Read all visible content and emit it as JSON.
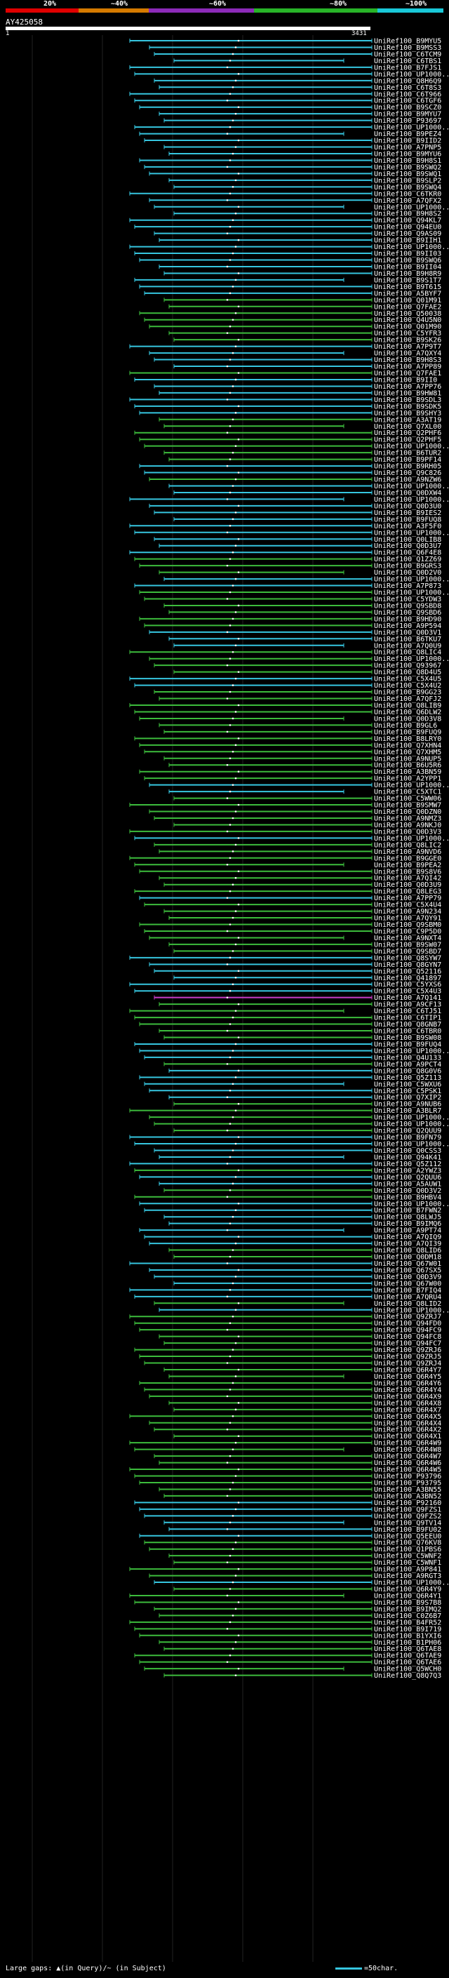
{
  "scale": {
    "labels": [
      "20%",
      "~40%",
      "~60%",
      "~80%",
      "~100%"
    ],
    "bands": [
      "#e00000",
      "#d57a00",
      "#8c2ab8",
      "#28b428",
      "#19c8d8"
    ]
  },
  "query": {
    "title": "AY425058",
    "start": "1",
    "end": "3431"
  },
  "colors": {
    "cyan": "#36c6e0",
    "green": "#3cbc3c",
    "magenta": "#c83cc8",
    "white": "#ffffff"
  },
  "hits": [
    [
      "UniRef100_B9MYU5",
      "c"
    ],
    [
      "UniRef100_B9MSS3",
      "c"
    ],
    [
      "UniRef100_C6TCM9",
      "c"
    ],
    [
      "UniRef100_C6TBS1",
      "c"
    ],
    [
      "UniRef100_B7FJS1",
      "c"
    ],
    [
      "UniRef100_UP1000...",
      "c"
    ],
    [
      "UniRef100_Q8H6Q9",
      "c"
    ],
    [
      "UniRef100_C6T8S3",
      "c"
    ],
    [
      "UniRef100_C6T966",
      "c"
    ],
    [
      "UniRef100_C6TGF6",
      "c"
    ],
    [
      "UniRef100_B9SCZ0",
      "c"
    ],
    [
      "UniRef100_B9MYU7",
      "c"
    ],
    [
      "UniRef100_P93697",
      "c"
    ],
    [
      "UniRef100_UP1000...",
      "c"
    ],
    [
      "UniRef100_B9PEZ4",
      "c"
    ],
    [
      "UniRef100_B9IID2",
      "c"
    ],
    [
      "UniRef100_A7PNP5",
      "c"
    ],
    [
      "UniRef100_B9MYU6",
      "c"
    ],
    [
      "UniRef100_B9H8S1",
      "c"
    ],
    [
      "UniRef100_B9SWQ2",
      "c"
    ],
    [
      "UniRef100_B9SWQ1",
      "c"
    ],
    [
      "UniRef100_B9SLP2",
      "c"
    ],
    [
      "UniRef100_B9SWQ4",
      "c"
    ],
    [
      "UniRef100_C6TKR0",
      "c"
    ],
    [
      "UniRef100_A7QFX2",
      "c"
    ],
    [
      "UniRef100_UP1000...",
      "c"
    ],
    [
      "UniRef100_B9H8S2",
      "c"
    ],
    [
      "UniRef100_Q94KL7",
      "c"
    ],
    [
      "UniRef100_Q94EU0",
      "c"
    ],
    [
      "UniRef100_Q9AS09",
      "c"
    ],
    [
      "UniRef100_B9IIH1",
      "c"
    ],
    [
      "UniRef100_UP1000...",
      "c"
    ],
    [
      "UniRef100_B9II03",
      "c"
    ],
    [
      "UniRef100_B9SWQ6",
      "c"
    ],
    [
      "UniRef100_B9II04",
      "c"
    ],
    [
      "UniRef100_B9H8R9",
      "c"
    ],
    [
      "UniRef100_B9S1T7",
      "c"
    ],
    [
      "UniRef100_B9T615",
      "c"
    ],
    [
      "UniRef100_A5BYF7",
      "c"
    ],
    [
      "UniRef100_Q01M91",
      "g"
    ],
    [
      "UniRef100_Q7FAE2",
      "g"
    ],
    [
      "UniRef100_Q50038",
      "g"
    ],
    [
      "UniRef100_Q4U5N0",
      "g"
    ],
    [
      "UniRef100_Q01M90",
      "g"
    ],
    [
      "UniRef100_C5YFR3",
      "g"
    ],
    [
      "UniRef100_B9SK26",
      "g"
    ],
    [
      "UniRef100_A7P9T7",
      "c"
    ],
    [
      "UniRef100_A7QXY4",
      "c"
    ],
    [
      "UniRef100_B9H8S3",
      "c"
    ],
    [
      "UniRef100_A7PP89",
      "c"
    ],
    [
      "UniRef100_Q7FAE1",
      "g"
    ],
    [
      "UniRef100_B9II0",
      "c"
    ],
    [
      "UniRef100_A7PP76",
      "c"
    ],
    [
      "UniRef100_B9HW81",
      "c"
    ],
    [
      "UniRef100_B9SDL3",
      "c"
    ],
    [
      "UniRef100_B9SDK5",
      "c"
    ],
    [
      "UniRef100_B9SHY3",
      "c"
    ],
    [
      "UniRef100_A3AT19",
      "g"
    ],
    [
      "UniRef100_Q7XL00",
      "g"
    ],
    [
      "UniRef100_Q2PHF6",
      "g"
    ],
    [
      "UniRef100_Q2PHF5",
      "g"
    ],
    [
      "UniRef100_UP1000...",
      "g"
    ],
    [
      "UniRef100_B6TUR2",
      "g"
    ],
    [
      "UniRef100_B9PF14",
      "g"
    ],
    [
      "UniRef100_B9RH05",
      "c"
    ],
    [
      "UniRef100_Q9C826",
      "c"
    ],
    [
      "UniRef100_A9NZW6",
      "g"
    ],
    [
      "UniRef100_UP1000...",
      "c"
    ],
    [
      "UniRef100_Q0DXW4",
      "c"
    ],
    [
      "UniRef100_UP1000...",
      "c"
    ],
    [
      "UniRef100_Q0D3U0",
      "c"
    ],
    [
      "UniRef100_B9IES2",
      "c"
    ],
    [
      "UniRef100_B9FUQ8",
      "c"
    ],
    [
      "UniRef100_A3F5F0",
      "c"
    ],
    [
      "UniRef100_UP1000...",
      "c"
    ],
    [
      "UniRef100_Q0LIB8",
      "c"
    ],
    [
      "UniRef100_Q0D3U7",
      "c"
    ],
    [
      "UniRef100_Q6F4E8",
      "c"
    ],
    [
      "UniRef100_Q1ZZ69",
      "g"
    ],
    [
      "UniRef100_B9GRS3",
      "g"
    ],
    [
      "UniRef100_Q0D2V0",
      "g"
    ],
    [
      "UniRef100_UP1000...",
      "c"
    ],
    [
      "UniRef100_A7P873",
      "c"
    ],
    [
      "UniRef100_UP1000...",
      "g"
    ],
    [
      "UniRef100_C5YDW3",
      "g"
    ],
    [
      "UniRef100_Q9SBD8",
      "g"
    ],
    [
      "UniRef100_Q9SBD6",
      "g"
    ],
    [
      "UniRef100_B9HD90",
      "g"
    ],
    [
      "UniRef100_A9P594",
      "g"
    ],
    [
      "UniRef100_Q0D3V1",
      "c"
    ],
    [
      "UniRef100_B6TKU7",
      "c"
    ],
    [
      "UniRef100_A7Q0U9",
      "c"
    ],
    [
      "UniRef100_Q8LIC4",
      "g"
    ],
    [
      "UniRef100_UP1000...",
      "g"
    ],
    [
      "UniRef100_Q93967",
      "g"
    ],
    [
      "UniRef100_Q8D4U5",
      "g"
    ],
    [
      "UniRef100_C5X4U5",
      "c"
    ],
    [
      "UniRef100_C5X4U2",
      "c"
    ],
    [
      "UniRef100_B9GG23",
      "g"
    ],
    [
      "UniRef100_A7QFJ2",
      "g"
    ],
    [
      "UniRef100_Q8LIB9",
      "g"
    ],
    [
      "UniRef100_Q6DLW2",
      "g"
    ],
    [
      "UniRef100_Q0D3V8",
      "g"
    ],
    [
      "UniRef100_B9GL6",
      "g"
    ],
    [
      "UniRef100_B9FUQ9",
      "g"
    ],
    [
      "UniRef100_B8LRY0",
      "g"
    ],
    [
      "UniRef100_Q7XHN4",
      "g"
    ],
    [
      "UniRef100_Q7XHM5",
      "g"
    ],
    [
      "UniRef100_A9NUP5",
      "g"
    ],
    [
      "UniRef100_B6U5R6",
      "g"
    ],
    [
      "UniRef100_A3BN59",
      "g"
    ],
    [
      "UniRef100_A2YPP1",
      "g"
    ],
    [
      "UniRef100_UP1000...",
      "c"
    ],
    [
      "UniRef100_C5XTC1",
      "c"
    ],
    [
      "UniRef100_C5WW06",
      "g"
    ],
    [
      "UniRef100_B9SMW7",
      "g"
    ],
    [
      "UniRef100_Q0DZN0",
      "g"
    ],
    [
      "UniRef100_A9NMZ3",
      "g"
    ],
    [
      "UniRef100_A9NKJ0",
      "g"
    ],
    [
      "UniRef100_Q0D3V3",
      "g"
    ],
    [
      "UniRef100_UP1000...",
      "c"
    ],
    [
      "UniRef100_Q8LIC2",
      "g"
    ],
    [
      "UniRef100_A9NVD6",
      "g"
    ],
    [
      "UniRef100_B9GGE0",
      "g"
    ],
    [
      "UniRef100_B9PEA2",
      "g"
    ],
    [
      "UniRef100_B9S8V6",
      "g"
    ],
    [
      "UniRef100_A7QI42",
      "g"
    ],
    [
      "UniRef100_Q0D3U9",
      "g"
    ],
    [
      "UniRef100_Q8LEG3",
      "g"
    ],
    [
      "UniRef100_A7PP79",
      "c"
    ],
    [
      "UniRef100_C5X4U4",
      "g"
    ],
    [
      "UniRef100_A9N234",
      "g"
    ],
    [
      "UniRef100_A7QY91",
      "g"
    ],
    [
      "UniRef100_Q9SBM0",
      "g"
    ],
    [
      "UniRef100_C9P5D0",
      "g"
    ],
    [
      "UniRef100_A9NXT4",
      "g"
    ],
    [
      "UniRef100_B9SW07",
      "g"
    ],
    [
      "UniRef100_Q9SBD7",
      "g"
    ],
    [
      "UniRef100_Q8SYW7",
      "c"
    ],
    [
      "UniRef100_Q8GYN7",
      "c"
    ],
    [
      "UniRef100_Q52116",
      "c"
    ],
    [
      "UniRef100_Q41897",
      "c"
    ],
    [
      "UniRef100_C5YXS6",
      "c"
    ],
    [
      "UniRef100_C5X4U3",
      "c"
    ],
    [
      "UniRef100_A7Q141",
      "m"
    ],
    [
      "UniRef100_A9CF13",
      "g"
    ],
    [
      "UniRef100_C6TJ51",
      "g"
    ],
    [
      "UniRef100_C6TIP1",
      "g"
    ],
    [
      "UniRef100_Q8GNB7",
      "g"
    ],
    [
      "UniRef100_C6TBR0",
      "g"
    ],
    [
      "UniRef100_B9SW08",
      "g"
    ],
    [
      "UniRef100_B9FUQ4",
      "c"
    ],
    [
      "UniRef100_UP1000...",
      "c"
    ],
    [
      "UniRef100_Q4U133",
      "c"
    ],
    [
      "UniRef100_A9PCT4",
      "g"
    ],
    [
      "UniRef100_Q8G0V6",
      "c"
    ],
    [
      "UniRef100_Q5Z113",
      "c"
    ],
    [
      "UniRef100_C5WXU6",
      "c"
    ],
    [
      "UniRef100_C5PSK1",
      "c"
    ],
    [
      "UniRef100_Q7XIP2",
      "c"
    ],
    [
      "UniRef100_A9NUB6",
      "g"
    ],
    [
      "UniRef100_A3BLR7",
      "g"
    ],
    [
      "UniRef100_UP1000...",
      "g"
    ],
    [
      "UniRef100_UP1000...",
      "g"
    ],
    [
      "UniRef100_Q2QUU9",
      "g"
    ],
    [
      "UniRef100_B9FN79",
      "c"
    ],
    [
      "UniRef100_UP1000...",
      "c"
    ],
    [
      "UniRef100_Q0CSS3",
      "c"
    ],
    [
      "UniRef100_Q94K41",
      "c"
    ],
    [
      "UniRef100_Q5Z112",
      "c"
    ],
    [
      "UniRef100_A2YWZ3",
      "g"
    ],
    [
      "UniRef100_Q2QUU6",
      "c"
    ],
    [
      "UniRef100_A5AUW1",
      "c"
    ],
    [
      "UniRef100_Q0D3V2",
      "g"
    ],
    [
      "UniRef100_B9HBV4",
      "g"
    ],
    [
      "UniRef100_UP1000...",
      "c"
    ],
    [
      "UniRef100_B7FWN2",
      "c"
    ],
    [
      "UniRef100_Q8LWJ5",
      "c"
    ],
    [
      "UniRef100_B9IMQ6",
      "c"
    ],
    [
      "UniRef100_A9PT74",
      "c"
    ],
    [
      "UniRef100_A7QIQ9",
      "c"
    ],
    [
      "UniRef100_A7QI39",
      "c"
    ],
    [
      "UniRef100_Q8LID6",
      "g"
    ],
    [
      "UniRef100_Q0DM18",
      "g"
    ],
    [
      "UniRef100_Q67W01",
      "c"
    ],
    [
      "UniRef100_Q67SX5",
      "c"
    ],
    [
      "UniRef100_Q0D3V9",
      "c"
    ],
    [
      "UniRef100_Q67W00",
      "c"
    ],
    [
      "UniRef100_B7FIQ4",
      "c"
    ],
    [
      "UniRef100_A7QRU4",
      "c"
    ],
    [
      "UniRef100_Q8LID2",
      "g"
    ],
    [
      "UniRef100_UP1000...",
      "c"
    ],
    [
      "UniRef100_Q9ZRJ7",
      "g"
    ],
    [
      "UniRef100_Q94FD0",
      "g"
    ],
    [
      "UniRef100_Q94FC9",
      "g"
    ],
    [
      "UniRef100_Q94FC8",
      "g"
    ],
    [
      "UniRef100_Q94FC7",
      "g"
    ],
    [
      "UniRef100_Q9ZRJ6",
      "g"
    ],
    [
      "UniRef100_Q9ZRJ5",
      "g"
    ],
    [
      "UniRef100_Q9ZRJ4",
      "g"
    ],
    [
      "UniRef100_Q6R4Y7",
      "g"
    ],
    [
      "UniRef100_Q6R4Y5",
      "g"
    ],
    [
      "UniRef100_Q6R4Y6",
      "g"
    ],
    [
      "UniRef100_Q6R4Y4",
      "g"
    ],
    [
      "UniRef100_Q6R4X9",
      "g"
    ],
    [
      "UniRef100_Q6R4X8",
      "g"
    ],
    [
      "UniRef100_Q6R4X7",
      "g"
    ],
    [
      "UniRef100_Q6R4X5",
      "g"
    ],
    [
      "UniRef100_Q6R4X4",
      "g"
    ],
    [
      "UniRef100_Q6R4X2",
      "g"
    ],
    [
      "UniRef100_Q6R4X1",
      "g"
    ],
    [
      "UniRef100_Q6R4W9",
      "g"
    ],
    [
      "UniRef100_Q6R4W8",
      "g"
    ],
    [
      "UniRef100_Q6R4W7",
      "g"
    ],
    [
      "UniRef100_Q6R4W6",
      "g"
    ],
    [
      "UniRef100_Q6R4W5",
      "g"
    ],
    [
      "UniRef100_P93796",
      "g"
    ],
    [
      "UniRef100_P93795",
      "g"
    ],
    [
      "UniRef100_A3BN55",
      "g"
    ],
    [
      "UniRef100_A3BN52",
      "g"
    ],
    [
      "UniRef100_P92160",
      "c"
    ],
    [
      "UniRef100_Q9FZS1",
      "c"
    ],
    [
      "UniRef100_Q9FZS2",
      "c"
    ],
    [
      "UniRef100_Q9TV14",
      "c"
    ],
    [
      "UniRef100_B9FU02",
      "c"
    ],
    [
      "UniRef100_Q5EEU0",
      "c"
    ],
    [
      "UniRef100_Q76KV8",
      "g"
    ],
    [
      "UniRef100_Q1PBS6",
      "g"
    ],
    [
      "UniRef100_C5WNF2",
      "g"
    ],
    [
      "UniRef100_C5WNF1",
      "g"
    ],
    [
      "UniRef100_A9P841",
      "g"
    ],
    [
      "UniRef100_A9RGT3",
      "g"
    ],
    [
      "UniRef100_UP1000...",
      "c"
    ],
    [
      "UniRef100_Q6R4Y9",
      "g"
    ],
    [
      "UniRef100_Q6R4Y1",
      "g"
    ],
    [
      "UniRef100_B9S7B8",
      "g"
    ],
    [
      "UniRef100_B9IMQ2",
      "g"
    ],
    [
      "UniRef100_C0Z6B7",
      "g"
    ],
    [
      "UniRef100_B4FR52",
      "g"
    ],
    [
      "UniRef100_B9I719",
      "g"
    ],
    [
      "UniRef100_B1YXI6",
      "g"
    ],
    [
      "UniRef100_B1PH06",
      "g"
    ],
    [
      "UniRef100_Q6TAE8",
      "g"
    ],
    [
      "UniRef100_Q6TAE9",
      "g"
    ],
    [
      "UniRef100_Q6TAE6",
      "g"
    ],
    [
      "UniRef100_Q5WCH0",
      "g"
    ],
    [
      "UniRef100_Q8Q7Q3",
      "g"
    ]
  ],
  "footer": {
    "gaps_text": "Large gaps: ▲(in Query)/~ (in Subject)",
    "legend_text": "=50char."
  }
}
